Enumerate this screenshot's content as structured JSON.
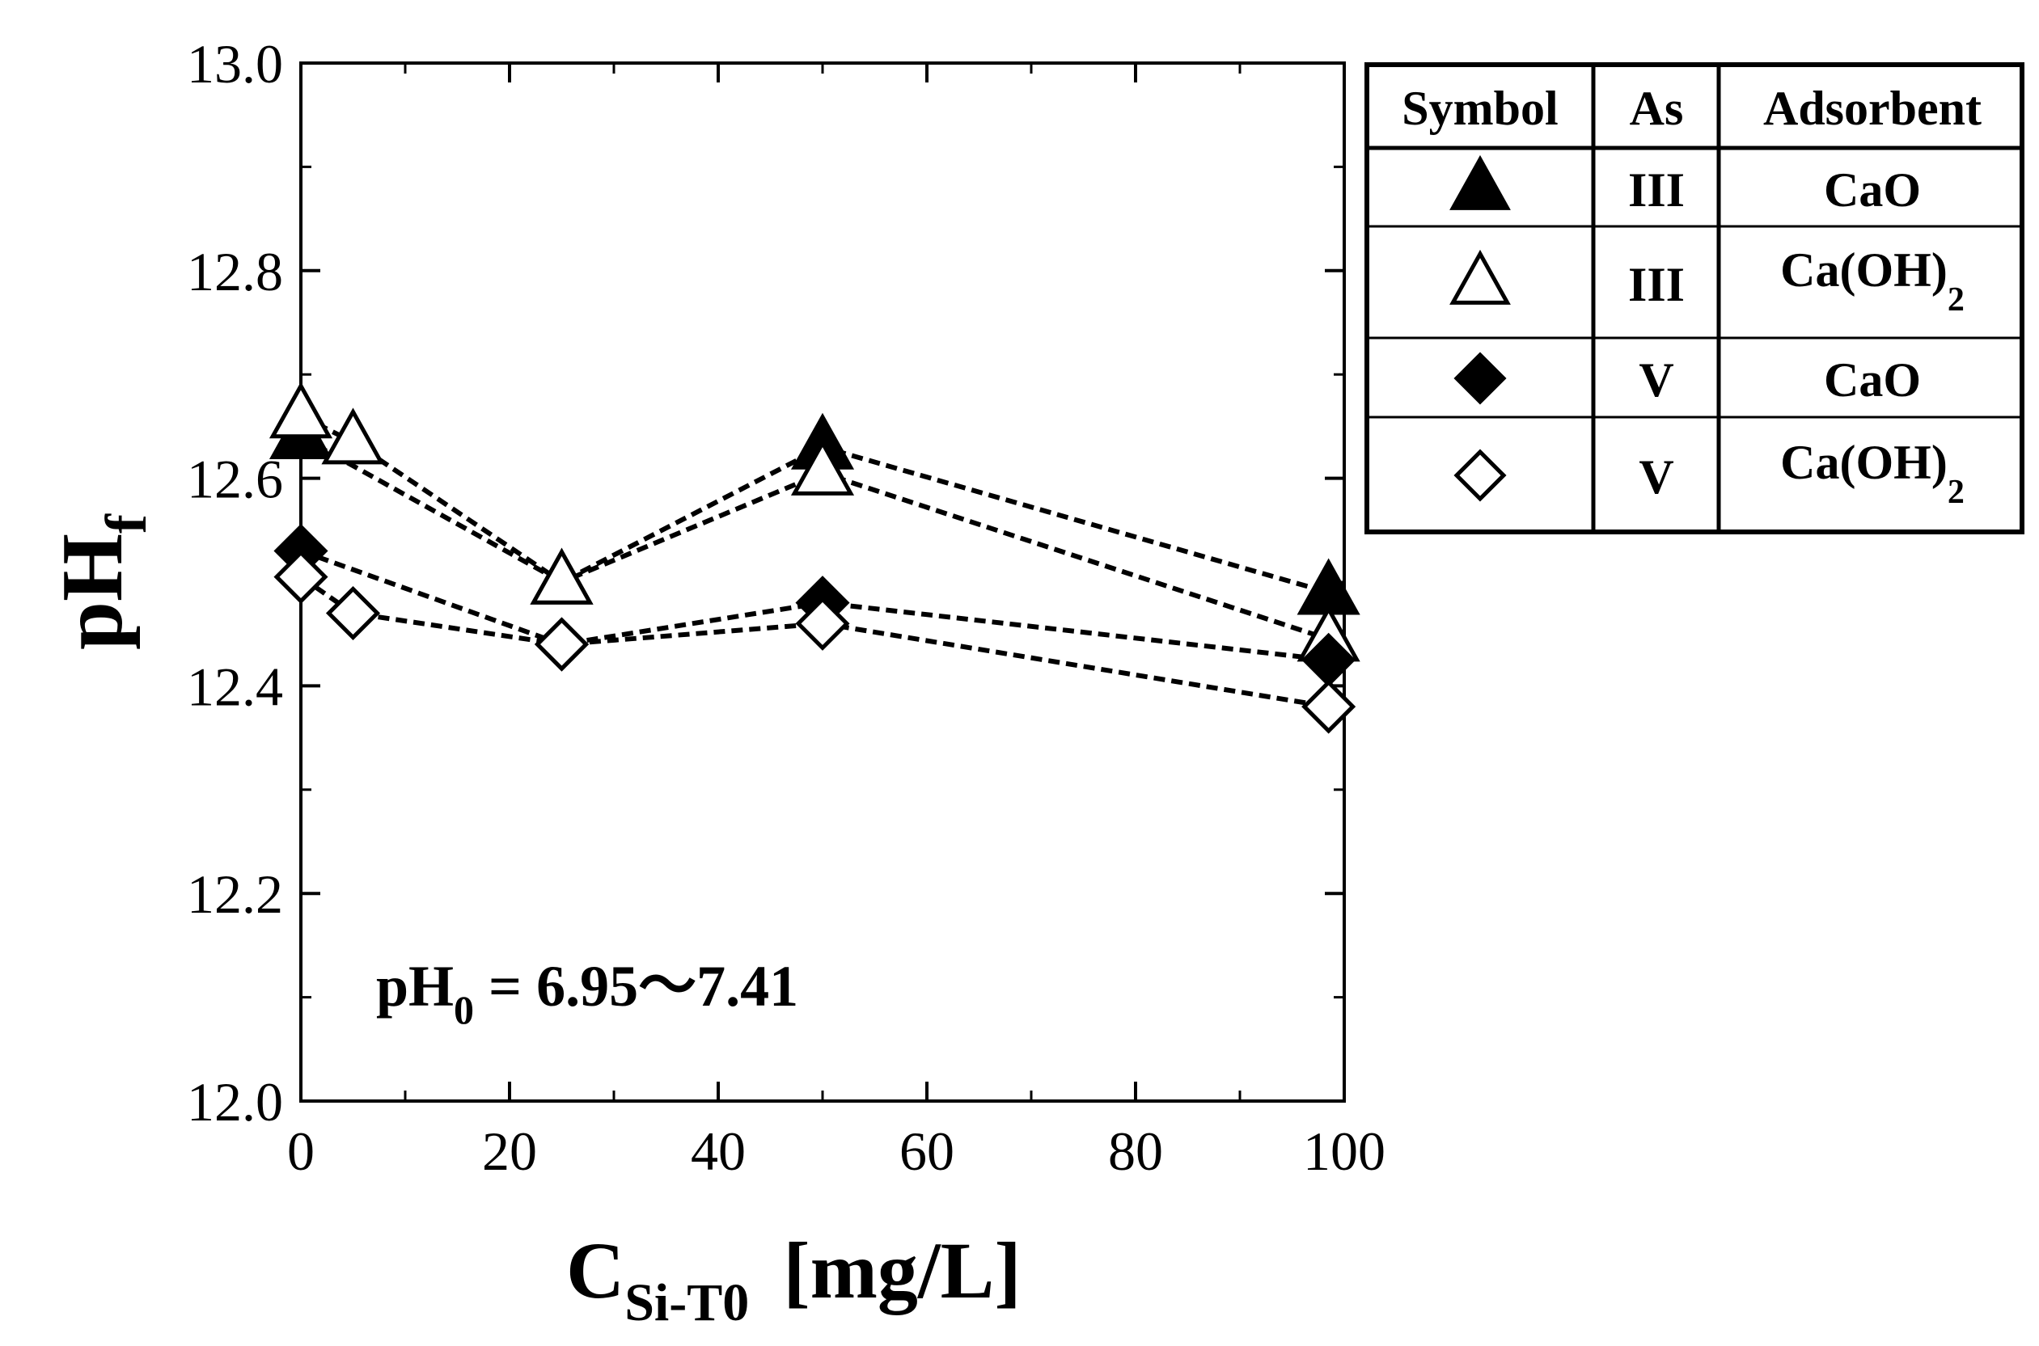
{
  "chart_data": {
    "type": "line",
    "xlabel": {
      "main": "C",
      "sub": "Si-T0",
      "unit": "[mg/L]"
    },
    "ylabel": {
      "main": "pH",
      "sub": "f"
    },
    "xlim": [
      0,
      100
    ],
    "ylim": [
      12.0,
      13.0
    ],
    "x_ticks": [
      "0",
      "20",
      "40",
      "60",
      "80",
      "100"
    ],
    "y_ticks": [
      "12.0",
      "12.2",
      "12.4",
      "12.6",
      "12.8",
      "13.0"
    ],
    "annotation": {
      "main": "pH",
      "sub": "0",
      "rest": " = 6.95〜7.41"
    },
    "legend_headers": [
      "Symbol",
      "As",
      "Adsorbent"
    ],
    "series": [
      {
        "name": "III CaO",
        "marker": "triangle",
        "filled": true,
        "as": "III",
        "adsorbent": "CaO",
        "adsorbent_sub": "",
        "x": [
          0,
          25,
          50,
          98.5
        ],
        "y": [
          12.64,
          12.5,
          12.63,
          12.49
        ]
      },
      {
        "name": "III Ca(OH)2",
        "marker": "triangle",
        "filled": false,
        "as": "III",
        "adsorbent": "Ca(OH)",
        "adsorbent_sub": "2",
        "x": [
          0,
          5,
          25,
          50,
          98.5
        ],
        "y": [
          12.66,
          12.635,
          12.5,
          12.605,
          12.445
        ]
      },
      {
        "name": "V CaO",
        "marker": "diamond",
        "filled": true,
        "as": "V",
        "adsorbent": "CaO",
        "adsorbent_sub": "",
        "x": [
          0,
          25,
          50,
          98.5
        ],
        "y": [
          12.53,
          12.44,
          12.48,
          12.425
        ]
      },
      {
        "name": "V Ca(OH)2",
        "marker": "diamond",
        "filled": false,
        "as": "V",
        "adsorbent": "Ca(OH)",
        "adsorbent_sub": "2",
        "x": [
          0,
          5,
          25,
          50,
          98.5
        ],
        "y": [
          12.505,
          12.47,
          12.44,
          12.46,
          12.38
        ]
      }
    ]
  }
}
